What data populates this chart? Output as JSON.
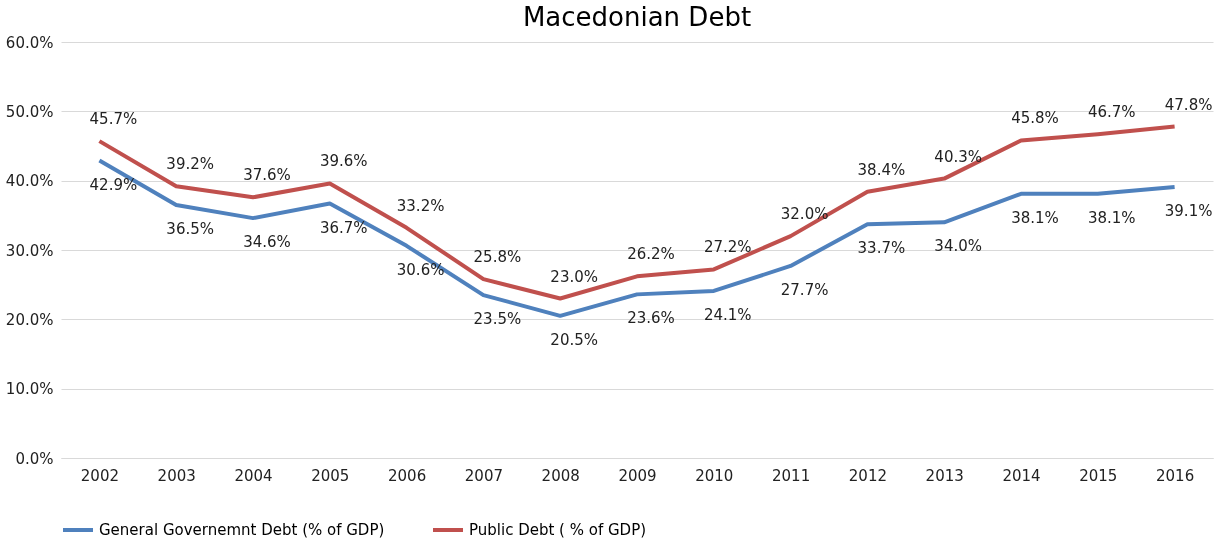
{
  "chart_data": {
    "type": "line",
    "title": "Macedonian Debt",
    "categories": [
      "2002",
      "2003",
      "2004",
      "2005",
      "2006",
      "2007",
      "2008",
      "2009",
      "2010",
      "2011",
      "2012",
      "2013",
      "2014",
      "2015",
      "2016"
    ],
    "series": [
      {
        "name": "General Governemnt Debt (% of GDP)",
        "color": "#4f81bd",
        "values": [
          42.9,
          36.5,
          34.6,
          36.7,
          30.6,
          23.5,
          20.5,
          23.6,
          24.1,
          27.7,
          33.7,
          34.0,
          38.1,
          38.1,
          39.1
        ],
        "value_labels": [
          "42.9%",
          "36.5%",
          "34.6%",
          "36.7%",
          "30.6%",
          "23.5%",
          "20.5%",
          "23.6%",
          "24.1%",
          "27.7%",
          "33.7%",
          "34.0%",
          "38.1%",
          "38.1%",
          "39.1%"
        ]
      },
      {
        "name": "Public Debt ( % of GDP)",
        "color": "#c0504d",
        "values": [
          45.7,
          39.2,
          37.6,
          39.6,
          33.2,
          25.8,
          23.0,
          26.2,
          27.2,
          32.0,
          38.4,
          40.3,
          45.8,
          46.7,
          47.8
        ],
        "value_labels": [
          "45.7%",
          "39.2%",
          "37.6%",
          "39.6%",
          "33.2%",
          "25.8%",
          "23.0%",
          "26.2%",
          "27.2%",
          "32.0%",
          "38.4%",
          "40.3%",
          "45.8%",
          "46.7%",
          "47.8%"
        ]
      }
    ],
    "ylim": [
      0,
      60
    ],
    "yticks": [
      {
        "value": 0,
        "label": "0.0%"
      },
      {
        "value": 10,
        "label": "10.0%"
      },
      {
        "value": 20,
        "label": "20.0%"
      },
      {
        "value": 30,
        "label": "30.0%"
      },
      {
        "value": 40,
        "label": "40.0%"
      },
      {
        "value": 50,
        "label": "50.0%"
      },
      {
        "value": 60,
        "label": "60.0%"
      }
    ],
    "grid": "y",
    "legend": "bottom",
    "marker": "none",
    "line_style": "solid"
  }
}
